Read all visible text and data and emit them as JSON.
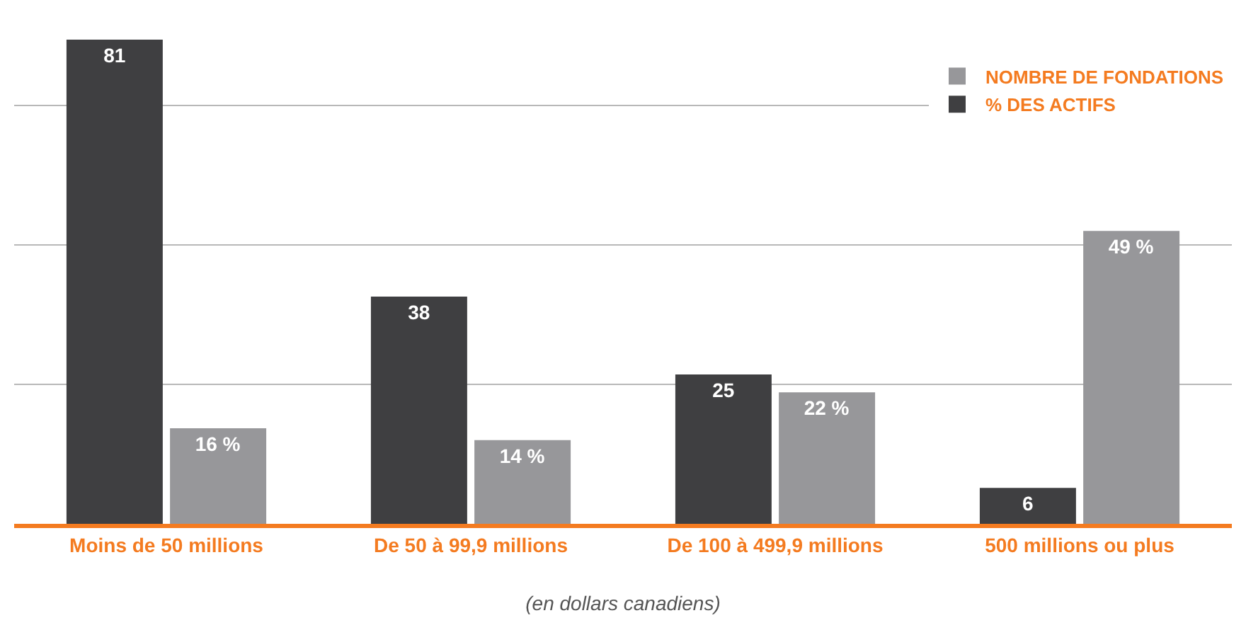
{
  "chart_data": {
    "type": "bar",
    "categories": [
      "Moins de 50 millions",
      "De 50 à 99,9 millions",
      "De 100 à 499,9 millions",
      "500 millions ou plus"
    ],
    "series": [
      {
        "name": "% DES ACTIFS",
        "color": "#3f3f41",
        "values": [
          81,
          38,
          25,
          6
        ],
        "value_labels": [
          "81",
          "38",
          "25",
          "6"
        ]
      },
      {
        "name": "NOMBRE DE FONDATIONS",
        "color": "#97979a",
        "values": [
          16,
          14,
          22,
          49
        ],
        "value_labels": [
          "16 %",
          "14 %",
          "22 %",
          "49 %"
        ]
      }
    ],
    "xlabel": "(en dollars canadiens)",
    "yticks": [
      {
        "value": 23.3,
        "label": null
      },
      {
        "value": 46.6,
        "label": null
      },
      {
        "value": 70,
        "label": null
      }
    ],
    "grid": "y",
    "legend": "top right",
    "tick_labels": "x"
  }
}
